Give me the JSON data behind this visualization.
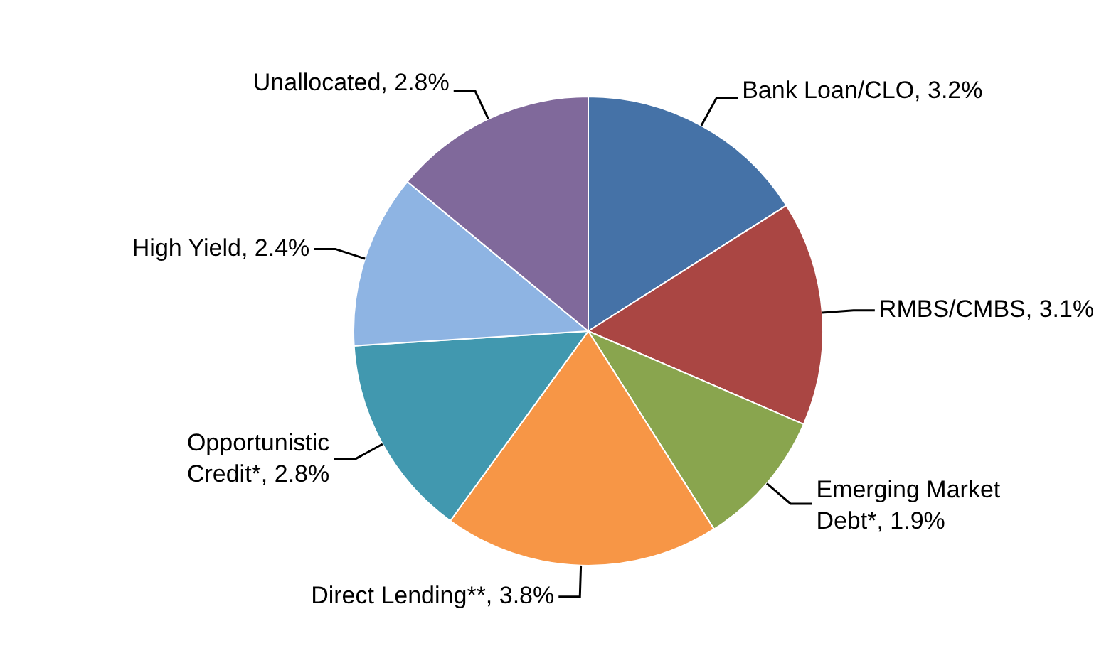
{
  "chart_data": {
    "type": "pie",
    "categories": [
      "Bank Loan/CLO",
      "RMBS/CMBS",
      "Emerging Market Debt*",
      "Direct Lending**",
      "Opportunistic Credit*",
      "High Yield",
      "Unallocated"
    ],
    "values": [
      3.2,
      3.1,
      1.9,
      3.8,
      2.8,
      2.4,
      2.8
    ],
    "value_labels": [
      "3.2%",
      "3.1%",
      "1.9%",
      "3.8%",
      "2.8%",
      "2.4%",
      "2.8%"
    ],
    "colors": [
      "#4572a7",
      "#aa4643",
      "#89a54e",
      "#f79646",
      "#4198af",
      "#8eb4e3",
      "#80699b"
    ],
    "legend": false
  }
}
